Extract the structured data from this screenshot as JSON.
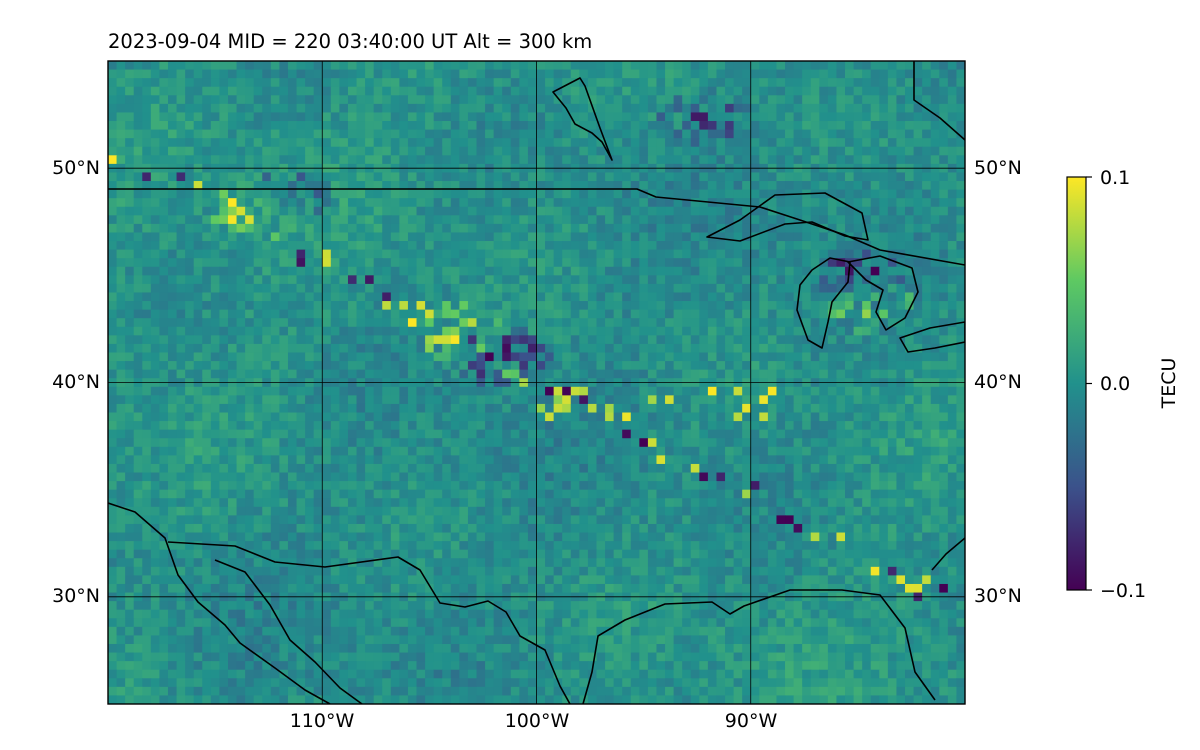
{
  "chart_data": {
    "type": "heatmap",
    "title": "2023-09-04  MID = 220    03:40:00  UT  Alt = 300 km",
    "projection": "lon/lat map with coastlines and borders (North America)",
    "lon_range": [
      -120,
      -80
    ],
    "lat_range": [
      25,
      55
    ],
    "grid": true,
    "x_ticks": [
      -110,
      -100,
      -90
    ],
    "x_tick_labels": [
      "110°W",
      "100°W",
      "90°W"
    ],
    "y_ticks": [
      30,
      40,
      50
    ],
    "y_tick_labels": [
      "30°N",
      "40°N",
      "50°N"
    ],
    "colormap": "viridis",
    "colormap_colors": [
      "#440154",
      "#3b528b",
      "#21918c",
      "#5ec962",
      "#fde725"
    ],
    "colorbar": {
      "label": "TECU",
      "vmin": -0.1,
      "vmax": 0.1,
      "ticks": [
        0.1,
        0.0,
        -0.1
      ],
      "tick_labels": [
        "0.1",
        "0.0",
        "−0.1"
      ]
    },
    "features": [
      {
        "name": "positive perturbation band northwest",
        "lon": -113,
        "lat": 48.3,
        "value": 0.1
      },
      {
        "name": "negative perturbation band northwest",
        "lon": -112,
        "lat": 48.7,
        "value": -0.1
      },
      {
        "name": "perturbation band central",
        "lon": -104,
        "lat": 42.5,
        "value": 0.1
      },
      {
        "name": "negative patch central",
        "lon": -102,
        "lat": 41.5,
        "value": -0.1
      },
      {
        "name": "perturbation band Great Lakes",
        "lon": -85,
        "lat": 44,
        "value": 0.1
      },
      {
        "name": "negative patch Great Lakes",
        "lon": -85.5,
        "lat": 45,
        "value": -0.1
      },
      {
        "name": "negative patch Quebec",
        "lon": -92,
        "lat": 52.5,
        "value": -0.08
      }
    ]
  }
}
